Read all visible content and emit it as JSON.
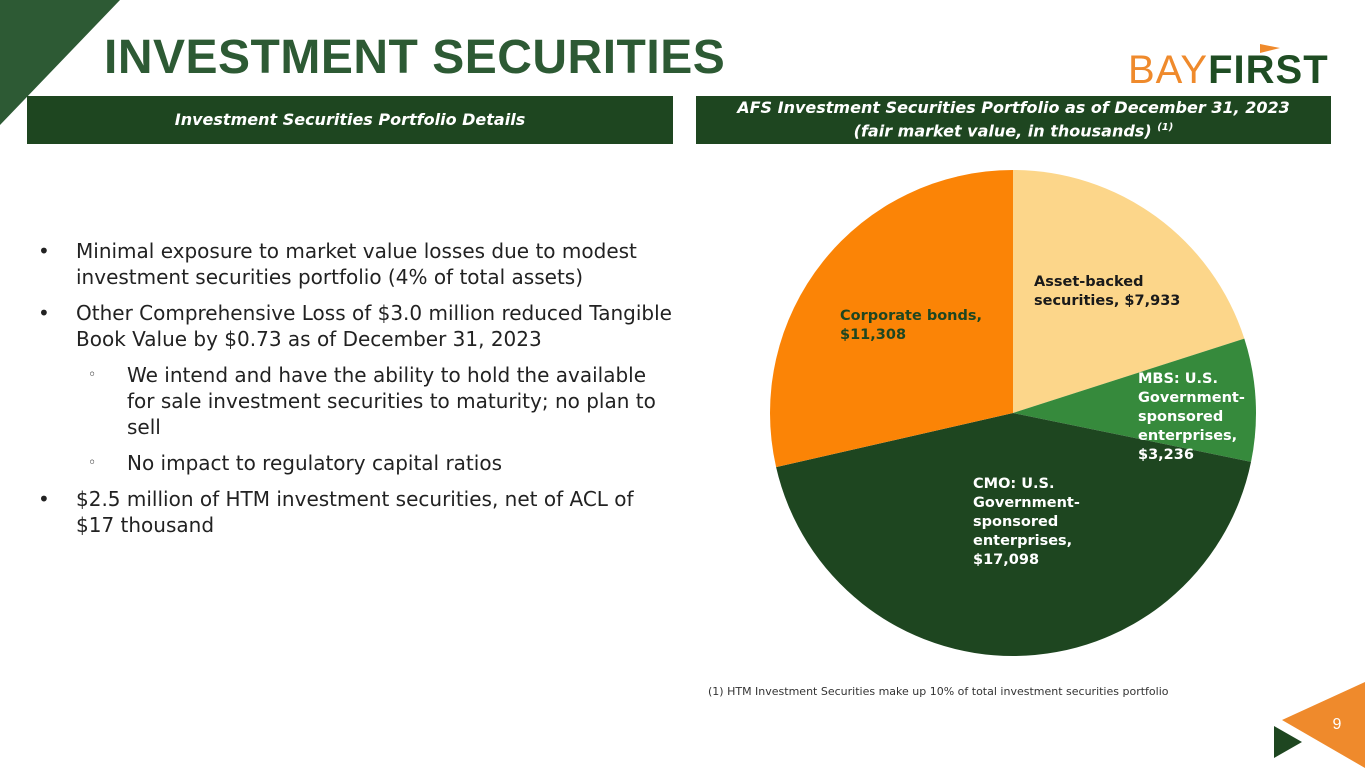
{
  "page": {
    "title": "INVESTMENT SECURITIES",
    "page_number": "9",
    "colors": {
      "dark_green": "#1e4620",
      "title_green": "#2d5a34",
      "orange": "#ef8a2c"
    }
  },
  "logo": {
    "part1": "BAY",
    "part2": "FIRST",
    "icon": "flag-icon"
  },
  "left_header": "Investment Securities Portfolio Details",
  "right_header": {
    "line1": "AFS Investment Securities Portfolio as of December 31, 2023",
    "line2": "(fair market value, in thousands)",
    "sup": "(1)"
  },
  "bullets": [
    {
      "level": 1,
      "marker": "•",
      "text": "Minimal exposure to market value losses due to modest investment securities portfolio (4% of total assets)"
    },
    {
      "level": 1,
      "marker": "•",
      "text": "Other Comprehensive Loss of $3.0 million reduced Tangible Book Value by $0.73 as of December 31, 2023"
    },
    {
      "level": 2,
      "marker": "◦",
      "text": "We intend and have the ability to hold the available for sale investment securities to maturity; no plan to sell"
    },
    {
      "level": 2,
      "marker": "◦",
      "text": "No impact to regulatory capital ratios"
    },
    {
      "level": 1,
      "marker": "•",
      "text": "$2.5 million of HTM investment securities, net of ACL of $17 thousand"
    }
  ],
  "chart_data": {
    "type": "pie",
    "title": "AFS Investment Securities Portfolio as of December 31, 2023",
    "subtitle": "(fair market value, in thousands)",
    "slices": [
      {
        "label": "Asset-backed securities",
        "value": 7933,
        "display": "$7,933",
        "color": "#fcd68a",
        "text_color": "#1a1a1a",
        "label_lines": [
          "Asset-backed",
          "securities, $7,933"
        ]
      },
      {
        "label": "MBS: U.S. Government-sponsored enterprises",
        "value": 3236,
        "display": "$3,236",
        "color": "#368a3c",
        "text_color": "#ffffff",
        "label_lines": [
          "MBS: U.S.",
          "Government-",
          "sponsored",
          "enterprises,",
          "$3,236"
        ]
      },
      {
        "label": "CMO: U.S. Government-sponsored enterprises",
        "value": 17098,
        "display": "$17,098",
        "color": "#1e4620",
        "text_color": "#ffffff",
        "label_lines": [
          "CMO: U.S.",
          "Government-",
          "sponsored",
          "enterprises,",
          "$17,098"
        ]
      },
      {
        "label": "Corporate bonds",
        "value": 11308,
        "display": "$11,308",
        "color": "#fb8406",
        "text_color": "#1e4620",
        "label_lines": [
          "Corporate bonds,",
          "$11,308"
        ]
      }
    ],
    "start": "12 o'clock",
    "direction": "clockwise"
  },
  "footnote": "(1) HTM Investment Securities make up 10% of total investment securities portfolio"
}
